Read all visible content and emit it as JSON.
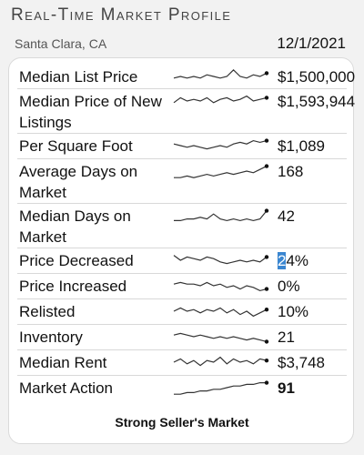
{
  "header": {
    "title": "Real-Time Market Profile",
    "location": "Santa Clara, CA",
    "date": "12/1/2021"
  },
  "metrics": [
    {
      "label": "Median List Price",
      "value": "$1,500,000",
      "trend": [
        4,
        5,
        4,
        5,
        4,
        6,
        5,
        4,
        5,
        9,
        5,
        4,
        6,
        5,
        7
      ]
    },
    {
      "label": "Median Price of New Listings",
      "value": "$1,593,944",
      "trend": [
        4,
        7,
        5,
        6,
        5,
        7,
        4,
        6,
        7,
        5,
        6,
        8,
        5,
        6,
        7
      ]
    },
    {
      "label": "Per Square Foot",
      "value": "$1,089",
      "trend": [
        6,
        5,
        4,
        5,
        4,
        3,
        4,
        5,
        4,
        6,
        7,
        6,
        8,
        7,
        8
      ]
    },
    {
      "label": "Average Days on Market",
      "value": "168",
      "trend": [
        1,
        1,
        2,
        1,
        2,
        3,
        2,
        3,
        4,
        3,
        4,
        5,
        4,
        6,
        8
      ]
    },
    {
      "label": "Median Days on Market",
      "value": "42",
      "trend": [
        2,
        2,
        3,
        3,
        4,
        3,
        6,
        3,
        2,
        3,
        2,
        3,
        2,
        3,
        8
      ]
    },
    {
      "label": "Price Decreased",
      "value": "24%",
      "value_highlight": "2",
      "value_rest": "4%",
      "trend": [
        8,
        5,
        7,
        6,
        5,
        7,
        6,
        4,
        3,
        4,
        5,
        4,
        5,
        4,
        7
      ]
    },
    {
      "label": "Price Increased",
      "value": "0%",
      "trend": [
        6,
        7,
        6,
        6,
        5,
        7,
        5,
        6,
        4,
        5,
        3,
        5,
        4,
        2,
        3
      ]
    },
    {
      "label": "Relisted",
      "value": "10%",
      "trend": [
        5,
        7,
        5,
        6,
        4,
        6,
        5,
        7,
        4,
        6,
        3,
        5,
        2,
        4,
        6
      ]
    },
    {
      "label": "Inventory",
      "value": "21",
      "trend": [
        6,
        7,
        6,
        5,
        6,
        5,
        4,
        5,
        4,
        5,
        4,
        3,
        4,
        3,
        2
      ]
    },
    {
      "label": "Median Rent",
      "value": "$3,748",
      "trend": [
        5,
        7,
        4,
        6,
        3,
        6,
        5,
        8,
        4,
        7,
        5,
        6,
        4,
        7,
        6
      ]
    },
    {
      "label": "Market Action",
      "value": "91",
      "bold": true,
      "trend": [
        1,
        1,
        2,
        2,
        3,
        3,
        4,
        4,
        5,
        6,
        6,
        7,
        7,
        8,
        8
      ]
    }
  ],
  "footer": {
    "verdict": "Strong Seller's Market"
  }
}
